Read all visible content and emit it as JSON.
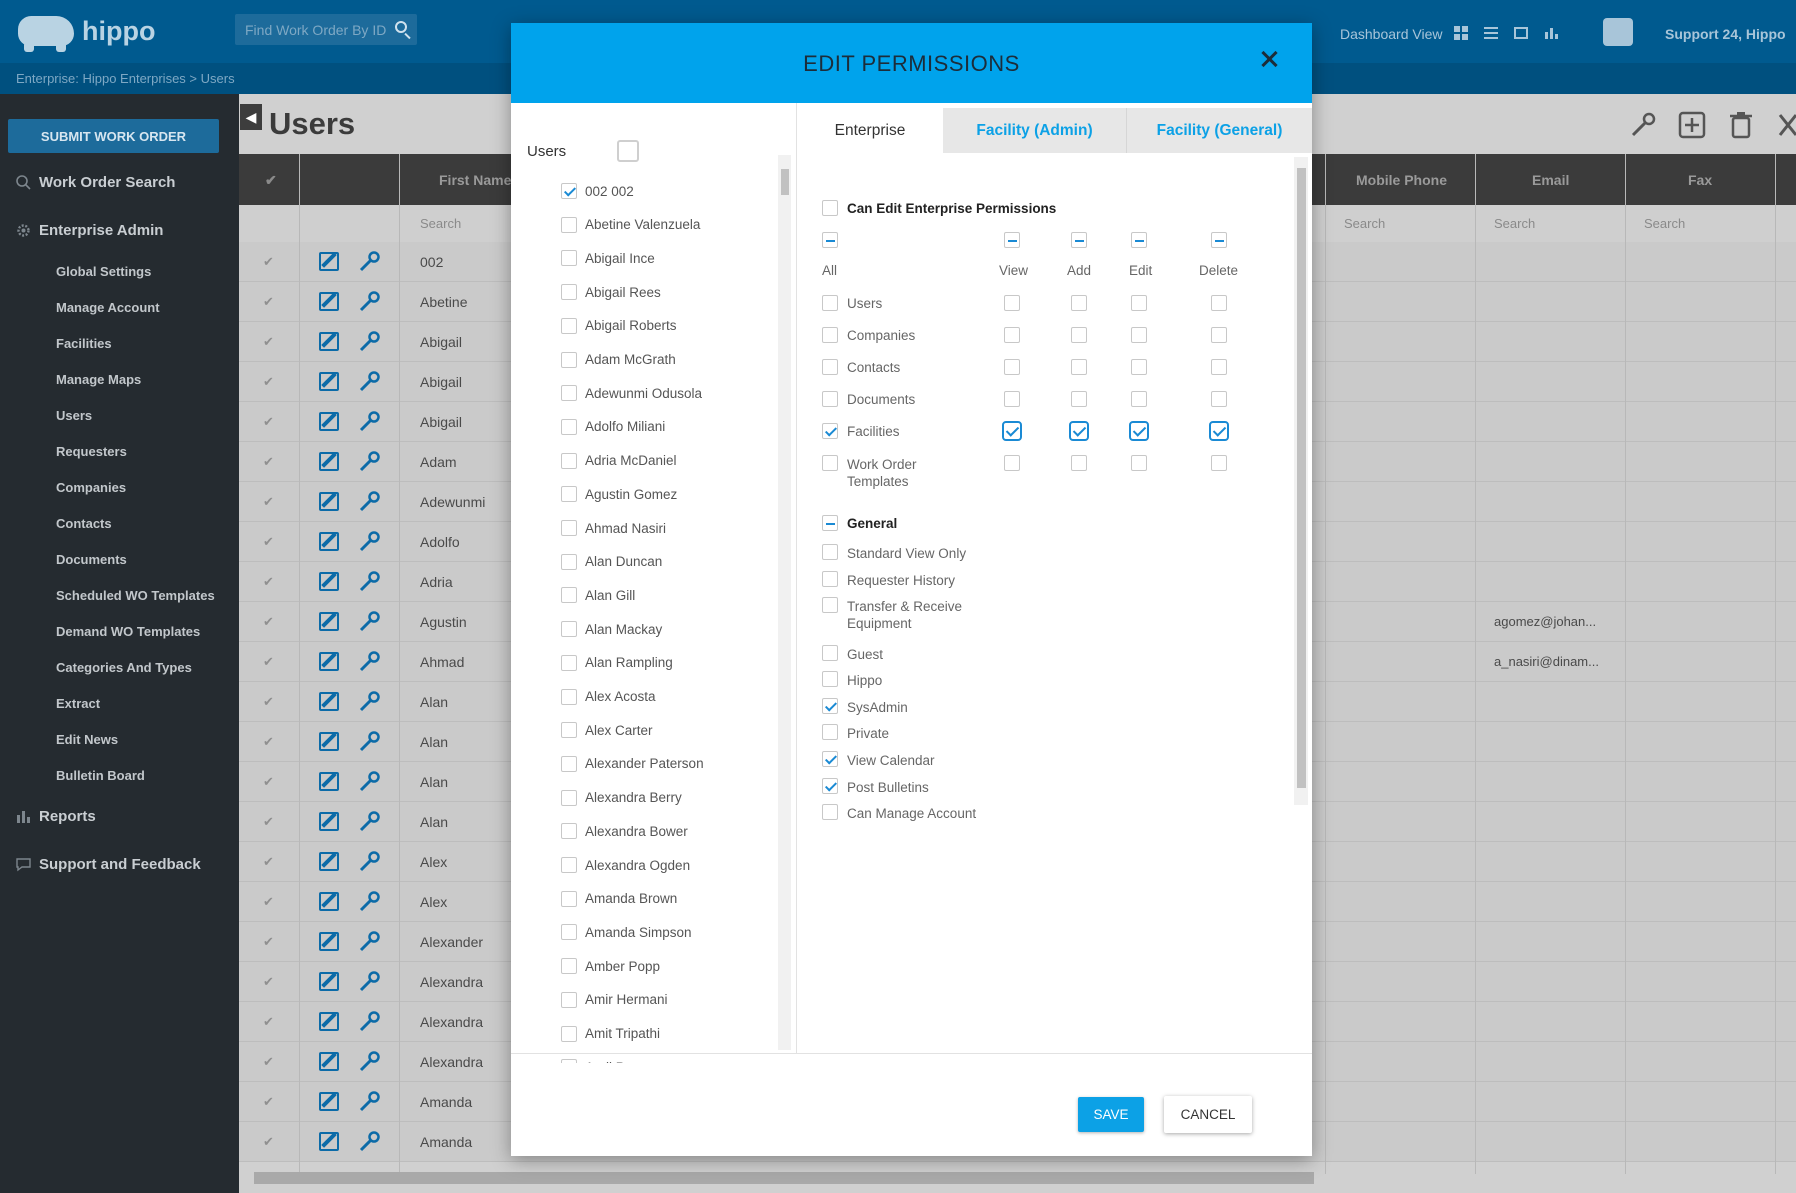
{
  "app": {
    "logo_text": "hippo",
    "search_placeholder": "Find Work Order By ID",
    "dashboard_label": "Dashboard View",
    "user_label": "Support 24, Hippo"
  },
  "breadcrumb": {
    "text": "Enterprise: Hippo Enterprises  >   Users"
  },
  "sidebar": {
    "submit_label": "SUBMIT WORK ORDER",
    "sections": {
      "wo_search": "Work Order Search",
      "enterprise_admin": "Enterprise Admin",
      "reports": "Reports",
      "support": "Support and Feedback"
    },
    "items": [
      "Global Settings",
      "Manage Account",
      "Facilities",
      "Manage Maps",
      "Users",
      "Requesters",
      "Companies",
      "Contacts",
      "Documents",
      "Scheduled WO Templates",
      "Demand WO Templates",
      "Categories And Types",
      "Extract",
      "Edit News",
      "Bulletin Board"
    ]
  },
  "page": {
    "title": "Users",
    "back_glyph": "◀"
  },
  "table": {
    "headers": {
      "first_name": "First Name",
      "mobile_phone": "Mobile Phone",
      "email": "Email",
      "fax": "Fax"
    },
    "search_placeholder": "Search",
    "rows": [
      {
        "first": "002",
        "email": ""
      },
      {
        "first": "Abetine",
        "email": ""
      },
      {
        "first": "Abigail",
        "email": ""
      },
      {
        "first": "Abigail",
        "email": ""
      },
      {
        "first": "Abigail",
        "email": ""
      },
      {
        "first": "Adam",
        "email": ""
      },
      {
        "first": "Adewunmi",
        "email": ""
      },
      {
        "first": "Adolfo",
        "email": ""
      },
      {
        "first": "Adria",
        "email": ""
      },
      {
        "first": "Agustin",
        "email": "agomez@johan..."
      },
      {
        "first": "Ahmad",
        "email": "a_nasiri@dinam..."
      },
      {
        "first": "Alan",
        "email": ""
      },
      {
        "first": "Alan",
        "email": ""
      },
      {
        "first": "Alan",
        "email": ""
      },
      {
        "first": "Alan",
        "email": ""
      },
      {
        "first": "Alex",
        "email": ""
      },
      {
        "first": "Alex",
        "email": ""
      },
      {
        "first": "Alexander",
        "email": ""
      },
      {
        "first": "Alexandra",
        "email": ""
      },
      {
        "first": "Alexandra",
        "email": ""
      },
      {
        "first": "Alexandra",
        "email": ""
      },
      {
        "first": "Amanda",
        "email": ""
      },
      {
        "first": "Amanda",
        "email": ""
      }
    ]
  },
  "modal": {
    "title": "EDIT PERMISSIONS",
    "users_title": "Users",
    "users": [
      {
        "name": "002 002",
        "checked": true
      },
      {
        "name": "Abetine Valenzuela",
        "checked": false
      },
      {
        "name": "Abigail Ince",
        "checked": false
      },
      {
        "name": "Abigail Rees",
        "checked": false
      },
      {
        "name": "Abigail Roberts",
        "checked": false
      },
      {
        "name": "Adam McGrath",
        "checked": false
      },
      {
        "name": "Adewunmi Odusola",
        "checked": false
      },
      {
        "name": "Adolfo Miliani",
        "checked": false
      },
      {
        "name": "Adria McDaniel",
        "checked": false
      },
      {
        "name": "Agustin Gomez",
        "checked": false
      },
      {
        "name": "Ahmad Nasiri",
        "checked": false
      },
      {
        "name": "Alan Duncan",
        "checked": false
      },
      {
        "name": "Alan Gill",
        "checked": false
      },
      {
        "name": "Alan Mackay",
        "checked": false
      },
      {
        "name": "Alan Rampling",
        "checked": false
      },
      {
        "name": "Alex Acosta",
        "checked": false
      },
      {
        "name": "Alex Carter",
        "checked": false
      },
      {
        "name": "Alexander Paterson",
        "checked": false
      },
      {
        "name": "Alexandra Berry",
        "checked": false
      },
      {
        "name": "Alexandra Bower",
        "checked": false
      },
      {
        "name": "Alexandra Ogden",
        "checked": false
      },
      {
        "name": "Amanda Brown",
        "checked": false
      },
      {
        "name": "Amanda Simpson",
        "checked": false
      },
      {
        "name": "Amber Popp",
        "checked": false
      },
      {
        "name": "Amir Hermani",
        "checked": false
      },
      {
        "name": "Amit Tripathi",
        "checked": false
      },
      {
        "name": "Andi Permana",
        "checked": false
      }
    ],
    "tabs": {
      "enterprise": "Enterprise",
      "facility_admin": "Facility (Admin)",
      "facility_general": "Facility (General)"
    },
    "can_edit_label": "Can Edit Enterprise Permissions",
    "columns": {
      "all": "All",
      "view": "View",
      "add": "Add",
      "edit": "Edit",
      "delete": "Delete"
    },
    "perm_rows": [
      "Users",
      "Companies",
      "Contacts",
      "Documents",
      "Facilities",
      "Work Order Templates"
    ],
    "general_title": "General",
    "general": [
      {
        "label": "Standard View Only",
        "checked": false
      },
      {
        "label": "Requester History",
        "checked": false
      },
      {
        "label": "Transfer & Receive Equipment",
        "checked": false
      },
      {
        "label": "Guest",
        "checked": false
      },
      {
        "label": "Hippo",
        "checked": false
      },
      {
        "label": "SysAdmin",
        "checked": true
      },
      {
        "label": "Private",
        "checked": false
      },
      {
        "label": "View Calendar",
        "checked": true
      },
      {
        "label": "Post Bulletins",
        "checked": true
      },
      {
        "label": "Can Manage Account",
        "checked": false
      }
    ],
    "save_label": "SAVE",
    "cancel_label": "CANCEL"
  },
  "colors": {
    "header": "#005a8f",
    "accent": "#00a3ec",
    "check": "#1a8ad4",
    "sidebar": "#252b30"
  }
}
